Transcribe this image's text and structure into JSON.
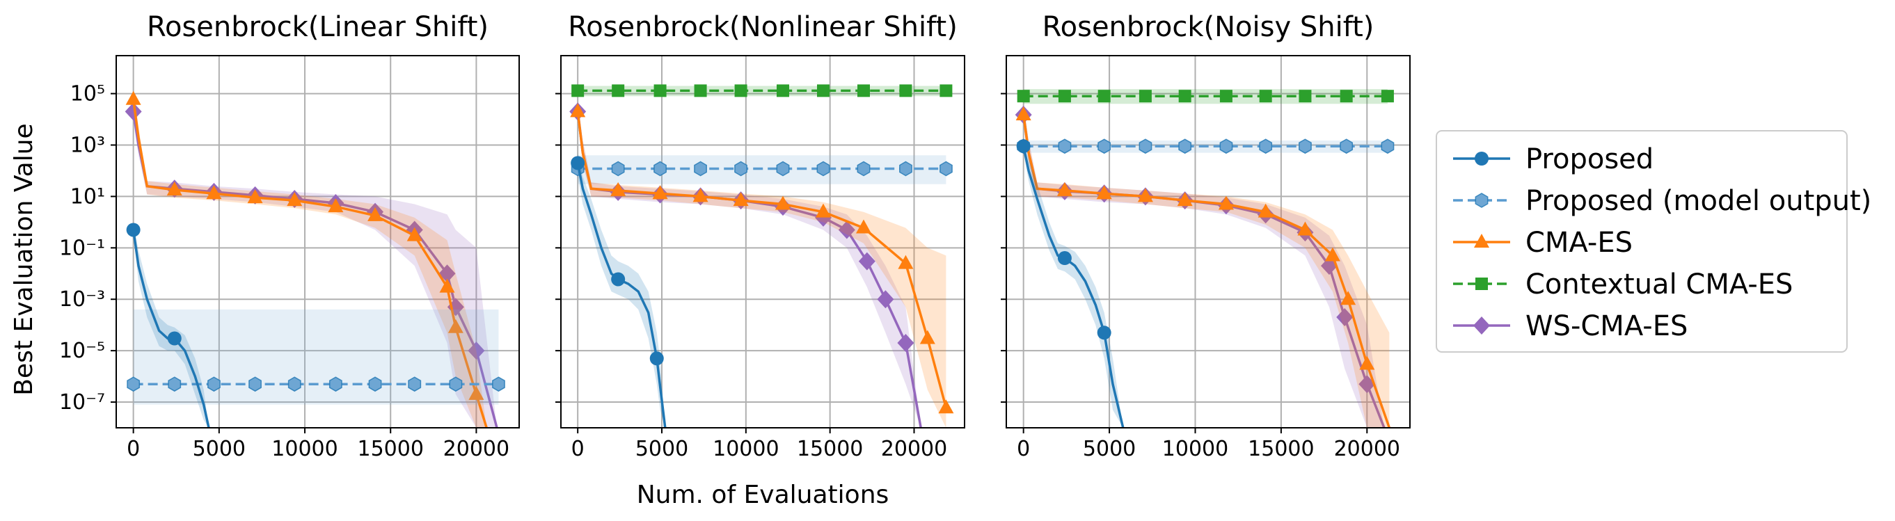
{
  "figure": {
    "xlabel": "Num. of Evaluations",
    "ylabel": "Best Evaluation Value"
  },
  "colors": {
    "Proposed": "#1f77b4",
    "Proposed (model output)": "#7fb1d9",
    "CMA-ES": "#ff7f0e",
    "Contextual CMA-ES": "#2ca02c",
    "WS-CMA-ES": "#9467bd"
  },
  "legend": {
    "placement": "right, outside plots",
    "entries": [
      {
        "label": "Proposed",
        "marker": "circle",
        "line": "solid"
      },
      {
        "label": "Proposed (model output)",
        "marker": "hexagon",
        "line": "dashed"
      },
      {
        "label": "CMA-ES",
        "marker": "triangle",
        "line": "solid"
      },
      {
        "label": "Contextual CMA-ES",
        "marker": "square",
        "line": "dashed"
      },
      {
        "label": "WS-CMA-ES",
        "marker": "diamond",
        "line": "solid"
      }
    ]
  },
  "chart_data": [
    {
      "type": "line",
      "title": "Rosenbrock(Linear Shift)",
      "xlim": [
        -1000,
        22500
      ],
      "ylim": [
        1e-08,
        3000000.0
      ],
      "yscale": "log",
      "grid": true,
      "xticks": [
        0,
        5000,
        10000,
        15000,
        20000
      ],
      "xtick_labels": [
        "0",
        "5000",
        "10000",
        "15000",
        "20000"
      ],
      "yticks": [
        1e-07,
        1e-05,
        0.001,
        0.1,
        10.0,
        1000.0,
        100000.0
      ],
      "ytick_labels": [
        "10^-7",
        "10^-5",
        "10^-3",
        "10^-1",
        "10^1",
        "10^3",
        "10^5"
      ],
      "show_ytick_labels": true,
      "series": [
        {
          "name": "WS-CMA-ES",
          "x": [
            0,
            300,
            800,
            2400,
            4700,
            7100,
            9400,
            11800,
            14100,
            16400,
            18300,
            18800,
            20000,
            21200
          ],
          "y": [
            20000,
            1000,
            25,
            20,
            15,
            11,
            8,
            5.5,
            2.5,
            0.5,
            0.01,
            0.0005,
            1e-05,
            1e-08
          ],
          "band_lo": [
            8000,
            400,
            12,
            10,
            8,
            6,
            4,
            2.5,
            0.5,
            0.02,
            2e-05,
            2e-07,
            1e-08,
            1e-08
          ],
          "band_hi": [
            50000,
            3000,
            40,
            35,
            25,
            20,
            15,
            12,
            10,
            5,
            2,
            0.5,
            0.1,
            1e-08
          ]
        },
        {
          "name": "CMA-ES",
          "x": [
            0,
            300,
            800,
            2400,
            4700,
            7100,
            9400,
            11800,
            14100,
            16400,
            18300,
            18800,
            20000,
            20600
          ],
          "y": [
            60000,
            2000,
            25,
            18,
            13,
            9,
            7,
            4,
            1.8,
            0.3,
            0.003,
            8e-05,
            2e-07,
            1e-08
          ],
          "band_lo": [
            25000,
            700,
            12,
            9,
            7,
            5,
            3.5,
            2,
            0.6,
            0.05,
            5e-05,
            1e-06,
            1e-08,
            1e-08
          ],
          "band_hi": [
            150000,
            5000,
            40,
            30,
            22,
            16,
            12,
            8,
            5,
            1.5,
            0.2,
            0.01,
            1e-05,
            1e-08
          ]
        },
        {
          "name": "Proposed (model output)",
          "x": [
            0,
            2400,
            4700,
            7100,
            9400,
            11800,
            14100,
            16400,
            18800,
            21300
          ],
          "y": [
            5e-07,
            5e-07,
            5e-07,
            5e-07,
            5e-07,
            5e-07,
            5e-07,
            5e-07,
            5e-07,
            5e-07
          ],
          "band_lo": [
            8e-08,
            8e-08,
            8e-08,
            8e-08,
            8e-08,
            8e-08,
            8e-08,
            8e-08,
            8e-08,
            8e-08
          ],
          "band_hi": [
            0.0004,
            0.0004,
            0.0004,
            0.0004,
            0.0004,
            0.0004,
            0.0004,
            0.0004,
            0.0004,
            0.0004
          ]
        },
        {
          "name": "Proposed",
          "x": [
            0,
            300,
            800,
            1500,
            2000,
            2400,
            3000,
            3600,
            4100,
            4400
          ],
          "y": [
            0.5,
            0.02,
            0.001,
            6e-05,
            3e-05,
            3e-05,
            1e-05,
            1e-06,
            8e-08,
            1e-08
          ],
          "band_lo": [
            0.3,
            0.005,
            0.0002,
            1.5e-05,
            1e-05,
            1e-05,
            3e-06,
            2e-07,
            2e-08,
            1e-08
          ],
          "band_hi": [
            0.9,
            0.08,
            0.004,
            0.0002,
            0.0001,
            8e-05,
            4e-05,
            5e-06,
            3e-07,
            1e-08
          ]
        }
      ]
    },
    {
      "type": "line",
      "title": "Rosenbrock(Nonlinear Shift)",
      "xlim": [
        -1000,
        23000
      ],
      "ylim": [
        1e-08,
        3000000.0
      ],
      "yscale": "log",
      "grid": true,
      "xticks": [
        0,
        5000,
        10000,
        15000,
        20000
      ],
      "xtick_labels": [
        "0",
        "5000",
        "10000",
        "15000",
        "20000"
      ],
      "yticks": [
        1e-07,
        1e-05,
        0.001,
        0.1,
        10.0,
        1000.0,
        100000.0
      ],
      "ytick_labels": [
        "10^-7",
        "10^-5",
        "10^-3",
        "10^-1",
        "10^1",
        "10^3",
        "10^5"
      ],
      "show_ytick_labels": false,
      "series": [
        {
          "name": "Contextual CMA-ES",
          "x": [
            0,
            2400,
            4900,
            7300,
            9700,
            12200,
            14600,
            17000,
            19500,
            21900
          ],
          "y": [
            130000,
            130000,
            130000,
            130000,
            130000,
            130000,
            130000,
            130000,
            130000,
            130000
          ],
          "band_lo": [
            80000,
            80000,
            80000,
            80000,
            80000,
            80000,
            80000,
            80000,
            80000,
            80000
          ],
          "band_hi": [
            200000,
            200000,
            200000,
            200000,
            200000,
            200000,
            200000,
            200000,
            200000,
            200000
          ]
        },
        {
          "name": "Proposed (model output)",
          "x": [
            0,
            2400,
            4900,
            7300,
            9700,
            12200,
            14600,
            17000,
            19500,
            21900
          ],
          "y": [
            120,
            120,
            120,
            120,
            120,
            120,
            120,
            120,
            120,
            120
          ],
          "band_lo": [
            30,
            30,
            30,
            30,
            30,
            30,
            30,
            30,
            30,
            30
          ],
          "band_hi": [
            400,
            400,
            400,
            400,
            400,
            400,
            400,
            400,
            400,
            400
          ]
        },
        {
          "name": "WS-CMA-ES",
          "x": [
            0,
            300,
            800,
            2400,
            4900,
            7300,
            9700,
            12200,
            14600,
            16000,
            17200,
            18300,
            19500,
            20400
          ],
          "y": [
            20000,
            500,
            20,
            15,
            12,
            10,
            7,
            4,
            1.5,
            0.5,
            0.03,
            0.001,
            2e-05,
            1e-08
          ],
          "band_lo": [
            8000,
            200,
            10,
            8,
            6,
            5,
            3.5,
            2,
            0.5,
            0.1,
            0.003,
            5e-05,
            5e-07,
            1e-08
          ],
          "band_hi": [
            50000,
            1500,
            35,
            25,
            20,
            16,
            12,
            8,
            4,
            2,
            0.3,
            0.02,
            0.0005,
            1e-08
          ]
        },
        {
          "name": "CMA-ES",
          "x": [
            0,
            300,
            800,
            2400,
            4900,
            7300,
            9700,
            12200,
            14600,
            17000,
            19500,
            20800,
            21900
          ],
          "y": [
            20000,
            500,
            20,
            17,
            13,
            10,
            7,
            5,
            2.5,
            0.6,
            0.025,
            3e-05,
            6e-08
          ],
          "band_lo": [
            8000,
            200,
            10,
            9,
            7,
            5,
            3.5,
            2.5,
            1,
            0.15,
            0.0005,
            3e-07,
            1e-08
          ],
          "band_hi": [
            50000,
            1500,
            35,
            28,
            22,
            17,
            13,
            10,
            6,
            2.5,
            0.6,
            0.1,
            0.05
          ]
        },
        {
          "name": "Proposed",
          "x": [
            0,
            300,
            800,
            1400,
            2000,
            2400,
            3000,
            3600,
            4200,
            4700,
            4900,
            5200
          ],
          "y": [
            200,
            20,
            2,
            0.1,
            0.01,
            0.006,
            0.004,
            0.002,
            0.0003,
            5e-06,
            4e-07,
            1e-08
          ],
          "band_lo": [
            60,
            5,
            0.5,
            0.02,
            0.002,
            0.0015,
            0.001,
            0.0004,
            3e-05,
            5e-07,
            5e-08,
            1e-08
          ],
          "band_hi": [
            500,
            60,
            8,
            0.5,
            0.05,
            0.03,
            0.02,
            0.01,
            0.002,
            5e-05,
            4e-06,
            1e-08
          ]
        }
      ]
    },
    {
      "type": "line",
      "title": "Rosenbrock(Noisy Shift)",
      "xlim": [
        -1000,
        22500
      ],
      "ylim": [
        1e-08,
        3000000.0
      ],
      "yscale": "log",
      "grid": true,
      "xticks": [
        0,
        5000,
        10000,
        15000,
        20000
      ],
      "xtick_labels": [
        "0",
        "5000",
        "10000",
        "15000",
        "20000"
      ],
      "yticks": [
        1e-07,
        1e-05,
        0.001,
        0.1,
        10.0,
        1000.0,
        100000.0
      ],
      "ytick_labels": [
        "10^-7",
        "10^-5",
        "10^-3",
        "10^-1",
        "10^1",
        "10^3",
        "10^5"
      ],
      "show_ytick_labels": false,
      "series": [
        {
          "name": "Contextual CMA-ES",
          "x": [
            0,
            2400,
            4700,
            7100,
            9400,
            11800,
            14100,
            16400,
            18800,
            21200
          ],
          "y": [
            80000,
            80000,
            80000,
            80000,
            80000,
            80000,
            80000,
            80000,
            80000,
            80000
          ],
          "band_lo": [
            40000,
            40000,
            40000,
            40000,
            40000,
            40000,
            40000,
            40000,
            40000,
            40000
          ],
          "band_hi": [
            150000,
            150000,
            150000,
            150000,
            150000,
            150000,
            150000,
            150000,
            150000,
            150000
          ]
        },
        {
          "name": "Proposed (model output)",
          "x": [
            0,
            2400,
            4700,
            7100,
            9400,
            11800,
            14100,
            16400,
            18800,
            21200
          ],
          "y": [
            900,
            900,
            900,
            900,
            900,
            900,
            900,
            900,
            900,
            900
          ],
          "band_lo": [
            500,
            500,
            500,
            500,
            500,
            500,
            500,
            500,
            500,
            500
          ],
          "band_hi": [
            1500,
            1500,
            1500,
            1500,
            1500,
            1500,
            1500,
            1500,
            1500,
            1500
          ]
        },
        {
          "name": "WS-CMA-ES",
          "x": [
            0,
            300,
            800,
            2400,
            4700,
            7100,
            9400,
            11800,
            14100,
            16400,
            17800,
            18700,
            20000,
            21000
          ],
          "y": [
            15000,
            500,
            20,
            16,
            13,
            10,
            7,
            4.5,
            2,
            0.4,
            0.02,
            0.0002,
            5e-07,
            1e-08
          ],
          "band_lo": [
            6000,
            200,
            10,
            8,
            6,
            5,
            3.5,
            2,
            0.6,
            0.05,
            0.0005,
            2e-06,
            1e-08,
            1e-08
          ],
          "band_hi": [
            40000,
            1500,
            35,
            28,
            22,
            17,
            13,
            9,
            5,
            1.5,
            0.3,
            0.02,
            0.0001,
            1e-08
          ]
        },
        {
          "name": "CMA-ES",
          "x": [
            0,
            300,
            800,
            2400,
            4700,
            7100,
            9400,
            11800,
            14100,
            16400,
            18000,
            18900,
            20000,
            21300
          ],
          "y": [
            15000,
            500,
            20,
            17,
            13,
            10,
            7,
            5,
            2.5,
            0.5,
            0.05,
            0.001,
            3e-06,
            1e-08
          ],
          "band_lo": [
            6000,
            200,
            10,
            9,
            7,
            5,
            3.5,
            2.5,
            0.8,
            0.1,
            0.002,
            2e-05,
            1e-08,
            1e-08
          ],
          "band_hi": [
            40000,
            1500,
            35,
            30,
            22,
            17,
            13,
            10,
            6,
            2,
            0.5,
            0.05,
            0.002,
            5e-05
          ]
        },
        {
          "name": "Proposed",
          "x": [
            0,
            300,
            800,
            1500,
            2000,
            2400,
            3000,
            3600,
            4200,
            4700,
            5200,
            5800
          ],
          "y": [
            900,
            100,
            8,
            0.3,
            0.05,
            0.04,
            0.02,
            0.005,
            0.0006,
            5e-05,
            5e-07,
            1e-08
          ],
          "band_lo": [
            500,
            40,
            2,
            0.08,
            0.015,
            0.012,
            0.006,
            0.001,
            0.0001,
            5e-06,
            5e-08,
            1e-08
          ],
          "band_hi": [
            1500,
            300,
            30,
            1,
            0.15,
            0.12,
            0.07,
            0.02,
            0.003,
            0.0003,
            5e-06,
            1e-08
          ]
        }
      ]
    }
  ]
}
